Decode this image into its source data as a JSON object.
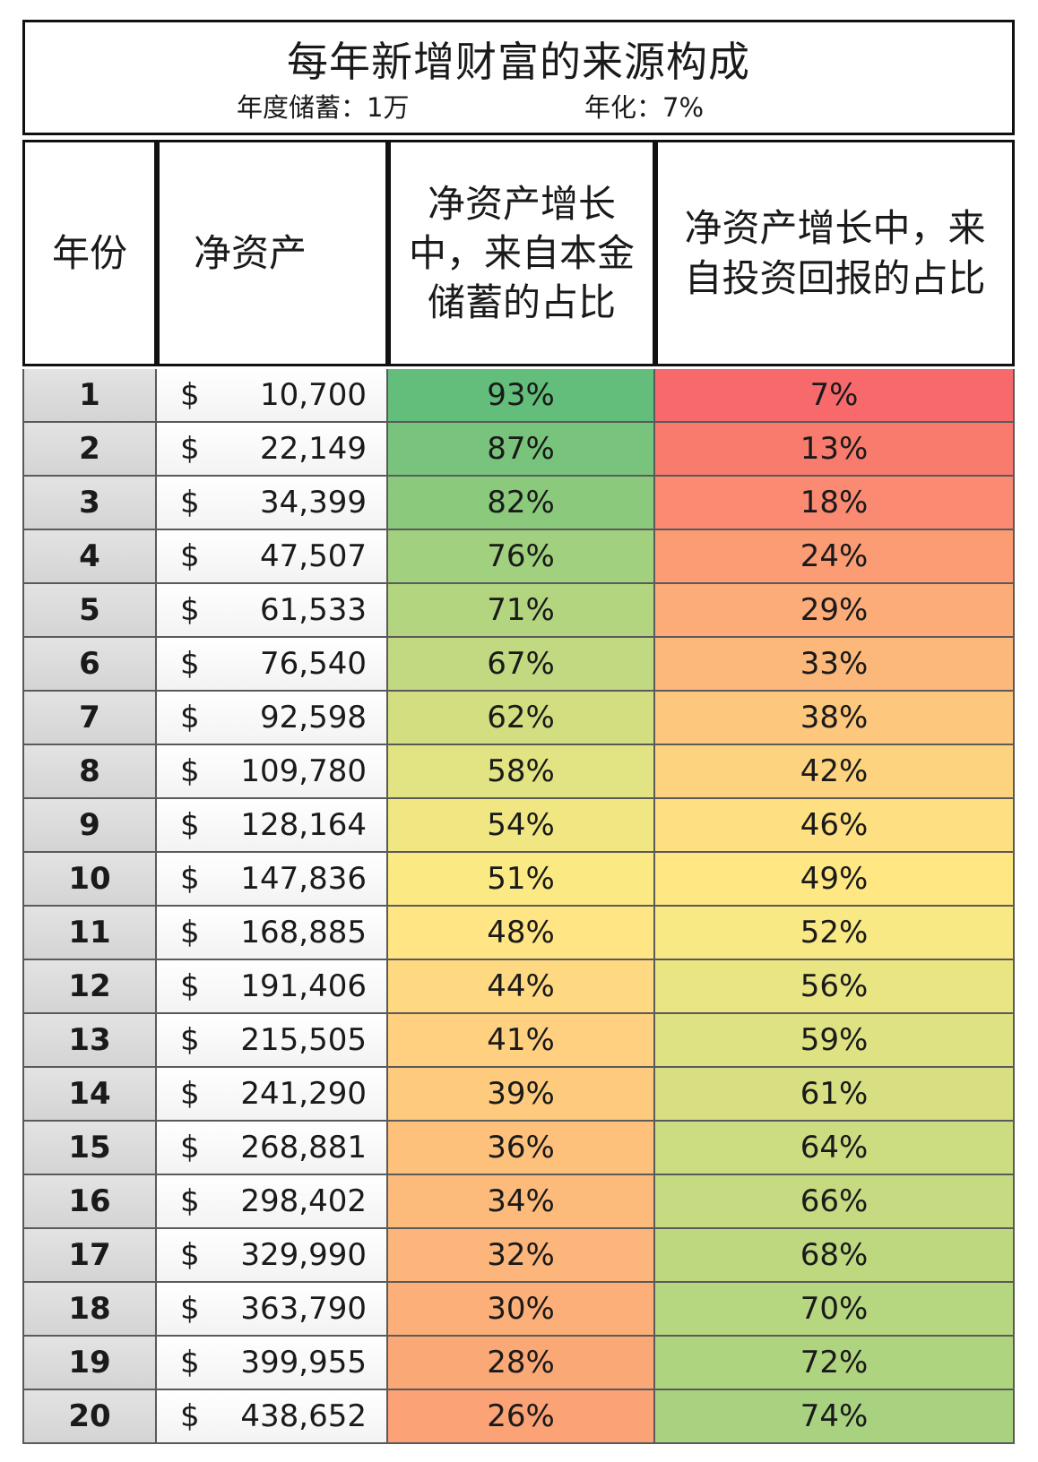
{
  "title": "每年新增财富的来源构成",
  "subtitle_savings": "年度储蓄：1万",
  "subtitle_rate": "年化：7%",
  "headers": {
    "year": "年份",
    "net_worth": "净资产",
    "savings_share": "净资产增长中，来自本金储蓄的占比",
    "investment_share": "净资产增长中，来自投资回报的占比"
  },
  "currency_symbol": "$",
  "rows": [
    {
      "year": "1",
      "net_worth": "10,700",
      "savings": "93%",
      "investment": "7%"
    },
    {
      "year": "2",
      "net_worth": "22,149",
      "savings": "87%",
      "investment": "13%"
    },
    {
      "year": "3",
      "net_worth": "34,399",
      "savings": "82%",
      "investment": "18%"
    },
    {
      "year": "4",
      "net_worth": "47,507",
      "savings": "76%",
      "investment": "24%"
    },
    {
      "year": "5",
      "net_worth": "61,533",
      "savings": "71%",
      "investment": "29%"
    },
    {
      "year": "6",
      "net_worth": "76,540",
      "savings": "67%",
      "investment": "33%"
    },
    {
      "year": "7",
      "net_worth": "92,598",
      "savings": "62%",
      "investment": "38%"
    },
    {
      "year": "8",
      "net_worth": "109,780",
      "savings": "58%",
      "investment": "42%"
    },
    {
      "year": "9",
      "net_worth": "128,164",
      "savings": "54%",
      "investment": "46%"
    },
    {
      "year": "10",
      "net_worth": "147,836",
      "savings": "51%",
      "investment": "49%"
    },
    {
      "year": "11",
      "net_worth": "168,885",
      "savings": "48%",
      "investment": "52%"
    },
    {
      "year": "12",
      "net_worth": "191,406",
      "savings": "44%",
      "investment": "56%"
    },
    {
      "year": "13",
      "net_worth": "215,505",
      "savings": "41%",
      "investment": "59%"
    },
    {
      "year": "14",
      "net_worth": "241,290",
      "savings": "39%",
      "investment": "61%"
    },
    {
      "year": "15",
      "net_worth": "268,881",
      "savings": "36%",
      "investment": "64%"
    },
    {
      "year": "16",
      "net_worth": "298,402",
      "savings": "34%",
      "investment": "66%"
    },
    {
      "year": "17",
      "net_worth": "329,990",
      "savings": "32%",
      "investment": "68%"
    },
    {
      "year": "18",
      "net_worth": "363,790",
      "savings": "30%",
      "investment": "70%"
    },
    {
      "year": "19",
      "net_worth": "399,955",
      "savings": "28%",
      "investment": "72%"
    },
    {
      "year": "20",
      "net_worth": "438,652",
      "savings": "26%",
      "investment": "74%"
    }
  ],
  "colors": {
    "heat_low": "#f8696b",
    "heat_mid": "#ffeb84",
    "heat_high": "#63be7b"
  }
}
